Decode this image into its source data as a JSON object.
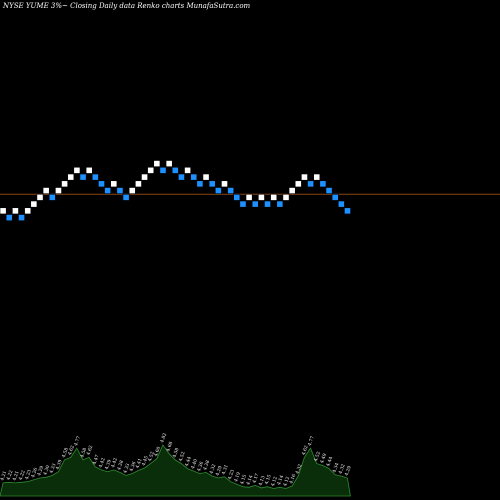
{
  "chart_data": {
    "type": "renko",
    "title": "NYSE YUME 3%~ Closing Daily data Renko charts MunafaSutra.com",
    "colors": {
      "background": "#000000",
      "up_brick_fill": "#ffffff",
      "down_brick_fill": "#1e90ff",
      "reference_line": "#8b4513",
      "volume_fill": "#0a2e0a",
      "volume_stroke": "#2e8b2e",
      "label_color": "#ffffff"
    },
    "bricks": [
      {
        "level": 7,
        "dir": "up"
      },
      {
        "level": 6,
        "dir": "down"
      },
      {
        "level": 7,
        "dir": "up"
      },
      {
        "level": 6,
        "dir": "down"
      },
      {
        "level": 7,
        "dir": "up"
      },
      {
        "level": 8,
        "dir": "up"
      },
      {
        "level": 9,
        "dir": "up"
      },
      {
        "level": 10,
        "dir": "up"
      },
      {
        "level": 9,
        "dir": "down"
      },
      {
        "level": 10,
        "dir": "up"
      },
      {
        "level": 11,
        "dir": "up"
      },
      {
        "level": 12,
        "dir": "up"
      },
      {
        "level": 13,
        "dir": "up"
      },
      {
        "level": 12,
        "dir": "down"
      },
      {
        "level": 13,
        "dir": "up"
      },
      {
        "level": 12,
        "dir": "down"
      },
      {
        "level": 11,
        "dir": "down"
      },
      {
        "level": 10,
        "dir": "down"
      },
      {
        "level": 11,
        "dir": "up"
      },
      {
        "level": 10,
        "dir": "down"
      },
      {
        "level": 9,
        "dir": "down"
      },
      {
        "level": 10,
        "dir": "up"
      },
      {
        "level": 11,
        "dir": "up"
      },
      {
        "level": 12,
        "dir": "up"
      },
      {
        "level": 13,
        "dir": "up"
      },
      {
        "level": 14,
        "dir": "up"
      },
      {
        "level": 13,
        "dir": "down"
      },
      {
        "level": 14,
        "dir": "up"
      },
      {
        "level": 13,
        "dir": "down"
      },
      {
        "level": 12,
        "dir": "down"
      },
      {
        "level": 13,
        "dir": "up"
      },
      {
        "level": 12,
        "dir": "down"
      },
      {
        "level": 11,
        "dir": "down"
      },
      {
        "level": 12,
        "dir": "up"
      },
      {
        "level": 11,
        "dir": "down"
      },
      {
        "level": 10,
        "dir": "down"
      },
      {
        "level": 11,
        "dir": "up"
      },
      {
        "level": 10,
        "dir": "down"
      },
      {
        "level": 9,
        "dir": "down"
      },
      {
        "level": 8,
        "dir": "down"
      },
      {
        "level": 9,
        "dir": "up"
      },
      {
        "level": 8,
        "dir": "down"
      },
      {
        "level": 9,
        "dir": "up"
      },
      {
        "level": 8,
        "dir": "down"
      },
      {
        "level": 9,
        "dir": "up"
      },
      {
        "level": 8,
        "dir": "down"
      },
      {
        "level": 9,
        "dir": "up"
      },
      {
        "level": 10,
        "dir": "up"
      },
      {
        "level": 11,
        "dir": "up"
      },
      {
        "level": 12,
        "dir": "up"
      },
      {
        "level": 11,
        "dir": "down"
      },
      {
        "level": 12,
        "dir": "up"
      },
      {
        "level": 11,
        "dir": "down"
      },
      {
        "level": 10,
        "dir": "down"
      },
      {
        "level": 9,
        "dir": "down"
      },
      {
        "level": 8,
        "dir": "down"
      },
      {
        "level": 7,
        "dir": "down"
      }
    ],
    "reference_level": 9.5,
    "volume_labels": [
      "4.21",
      "4.22",
      "4.21",
      "4.22",
      "4.23",
      "4.26",
      "4.29",
      "4.30",
      "4.33",
      "4.39",
      "4.58",
      "4.62",
      "4.77",
      "4.58",
      "4.62",
      "4.47",
      "4.42",
      "4.39",
      "4.42",
      "4.38",
      "4.33",
      "4.36",
      "4.41",
      "4.45",
      "4.52",
      "4.60",
      "4.82",
      "4.68",
      "4.58",
      "4.52",
      "4.44",
      "4.40",
      "4.36",
      "4.38",
      "4.32",
      "4.29",
      "4.31",
      "4.23",
      "4.19",
      "4.15",
      "4.14",
      "4.17",
      "4.13",
      "4.15",
      "4.12",
      "4.14",
      "4.12",
      "4.16",
      "4.32",
      "4.62",
      "4.77",
      "4.52",
      "4.49",
      "4.44",
      "4.34",
      "4.32",
      "4.29"
    ]
  }
}
